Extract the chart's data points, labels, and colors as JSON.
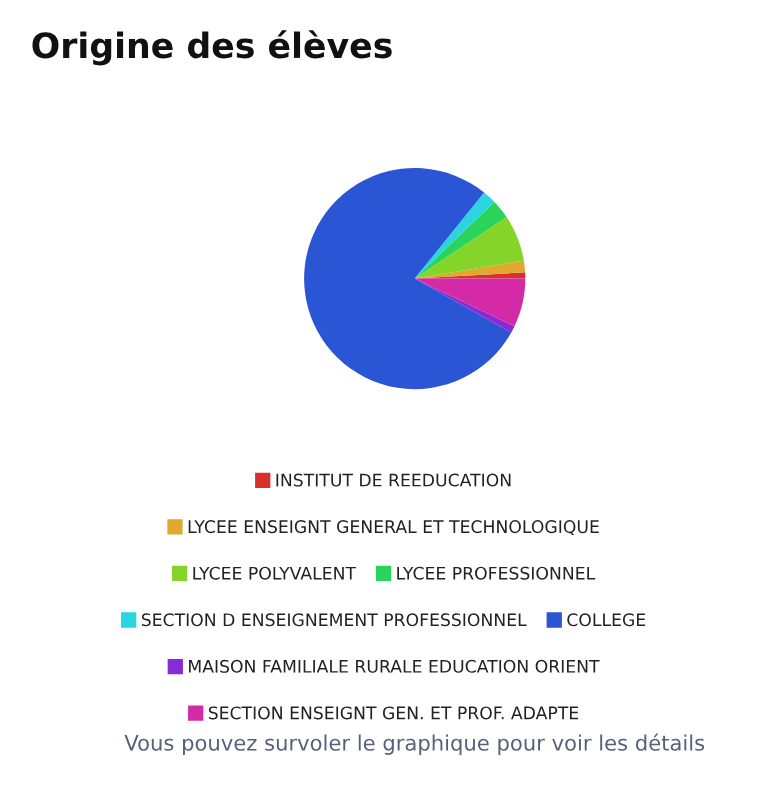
{
  "chart_data": {
    "type": "pie",
    "title": "Origine des élèves",
    "categories": [
      "INSTITUT DE REEDUCATION",
      "LYCEE ENSEIGNT GENERAL ET TECHNOLOGIQUE",
      "LYCEE POLYVALENT",
      "LYCEE PROFESSIONNEL",
      "SECTION D ENSEIGNEMENT PROFESSIONNEL",
      "COLLEGE",
      "MAISON FAMILIALE RURALE EDUCATION ORIENT",
      "SECTION ENSEIGNT GEN. ET PROF. ADAPTE"
    ],
    "values": [
      0.9,
      1.7,
      6.8,
      2.8,
      2.0,
      77.7,
      1.0,
      7.1
    ],
    "colors": [
      "#d9302c",
      "#e0a82e",
      "#84d42a",
      "#2ad45a",
      "#2ad4e0",
      "#2a55d4",
      "#8a2ad4",
      "#d42aa8"
    ],
    "legend": "bottom",
    "annotations": [
      "Vous pouvez survoler le graphique pour voir les détails"
    ]
  }
}
